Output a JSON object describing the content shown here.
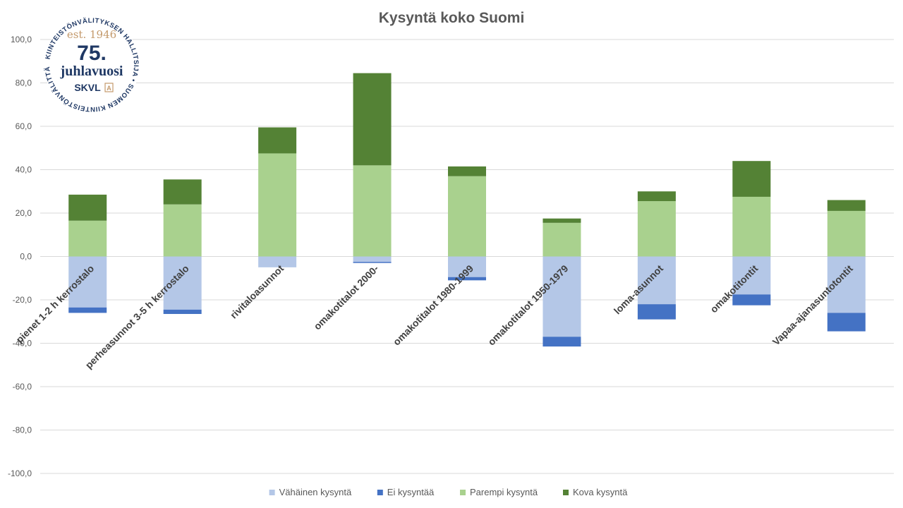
{
  "chart_data": {
    "type": "bar",
    "stacked": true,
    "title": "Kysyntä koko Suomi",
    "xlabel": "",
    "ylabel": "",
    "ylim": [
      -100,
      100
    ],
    "yticks": [
      100,
      80,
      60,
      40,
      20,
      0,
      -20,
      -40,
      -60,
      -80,
      -100
    ],
    "ytick_labels": [
      "100,0",
      "80,0",
      "60,0",
      "40,0",
      "20,0",
      "0,0",
      "-20,0",
      "-40,0",
      "-60,0",
      "-80,0",
      "-100,0"
    ],
    "grid": true,
    "legend_position": "bottom",
    "categories": [
      "pienet 1-2 h kerrostalo",
      "perheasunnot 3-5 h kerrostalo",
      "rivitaloasunnot",
      "omakotitalot 2000-",
      "omakotitalot 1980-1999",
      "omakotitalot 1950-1979",
      "loma-asunnot",
      "omakotitontit",
      "Vapaa-ajanasuntotontit"
    ],
    "series": [
      {
        "name": "Vähäinen kysyntä",
        "color": "#b4c7e7",
        "values": [
          -23.5,
          -24.5,
          -5.0,
          -2.5,
          -9.5,
          -37.0,
          -22.0,
          -17.5,
          -26.0
        ]
      },
      {
        "name": "Ei kysyntää",
        "color": "#4472c4",
        "values": [
          -2.5,
          -2.0,
          0,
          -0.5,
          -1.5,
          -4.5,
          -7.0,
          -5.0,
          -8.5
        ]
      },
      {
        "name": "Parempi kysyntä",
        "color": "#a9d18e",
        "values": [
          16.5,
          24.0,
          47.5,
          42.0,
          37.0,
          15.5,
          25.5,
          27.5,
          21.0
        ]
      },
      {
        "name": "Kova kysyntä",
        "color": "#548235",
        "values": [
          12.0,
          11.5,
          12.0,
          42.5,
          4.5,
          2.0,
          4.5,
          16.5,
          5.0
        ]
      }
    ]
  },
  "logo": {
    "ring_text": "KIINTEISTÖNVÄLITYKSEN HALLITSIJA • SUOMEN KIINTEISTÖNVÄLITTÄJÄT RY •",
    "est": "est. 1946",
    "number": "75.",
    "word": "juhlavuosi",
    "brand": "SKVL",
    "brand_mark": "A",
    "color": "#1f3864",
    "accent": "#c49a6c"
  }
}
